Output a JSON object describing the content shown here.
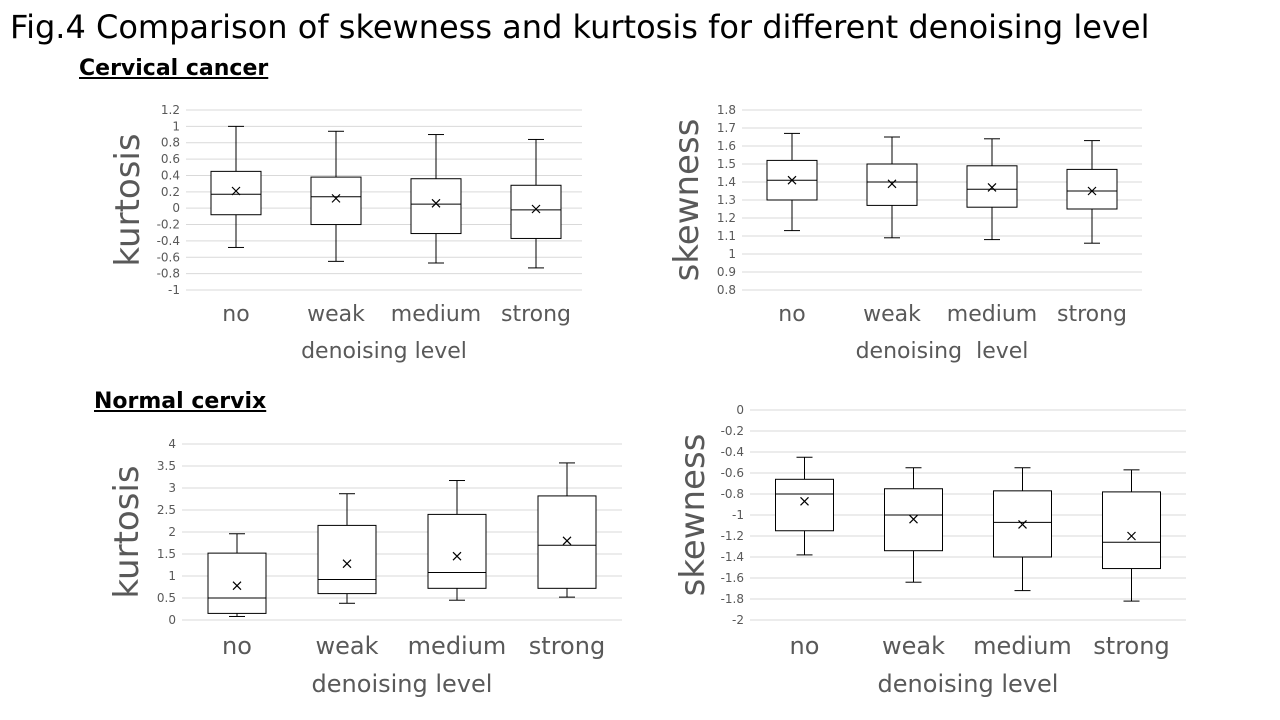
{
  "title": "Fig.4 Comparison of skewness and kurtosis for different denoising level",
  "sections": [
    "Cervical cancer",
    "Normal cervix"
  ],
  "chart_data": [
    {
      "type": "box",
      "section": "Cervical cancer",
      "xlabel": "denoising level",
      "ylabel": "kurtosis",
      "categories": [
        "no",
        "weak",
        "medium",
        "strong"
      ],
      "ylim": [
        -1,
        1.2
      ],
      "ytick_step": 0.2,
      "yticks": [
        "-1",
        "-0.8",
        "-0.6",
        "-0.4",
        "-0.2",
        "0",
        "0.2",
        "0.4",
        "0.6",
        "0.8",
        "1",
        "1.2"
      ],
      "grid": true,
      "boxes": [
        {
          "min": -0.48,
          "q1": -0.08,
          "median": 0.17,
          "q3": 0.45,
          "max": 1.0,
          "mean": 0.21
        },
        {
          "min": -0.65,
          "q1": -0.2,
          "median": 0.14,
          "q3": 0.38,
          "max": 0.94,
          "mean": 0.12
        },
        {
          "min": -0.67,
          "q1": -0.31,
          "median": 0.05,
          "q3": 0.36,
          "max": 0.9,
          "mean": 0.06
        },
        {
          "min": -0.73,
          "q1": -0.37,
          "median": -0.02,
          "q3": 0.28,
          "max": 0.84,
          "mean": -0.01
        }
      ]
    },
    {
      "type": "box",
      "section": "Cervical cancer",
      "xlabel": "denoising  level",
      "ylabel": "skewness",
      "categories": [
        "no",
        "weak",
        "medium",
        "strong"
      ],
      "ylim": [
        0.8,
        1.8
      ],
      "ytick_step": 0.1,
      "yticks": [
        "0.8",
        "0.9",
        "1",
        "1.1",
        "1.2",
        "1.3",
        "1.4",
        "1.5",
        "1.6",
        "1.7",
        "1.8"
      ],
      "grid": true,
      "boxes": [
        {
          "min": 1.13,
          "q1": 1.3,
          "median": 1.41,
          "q3": 1.52,
          "max": 1.67,
          "mean": 1.41
        },
        {
          "min": 1.09,
          "q1": 1.27,
          "median": 1.4,
          "q3": 1.5,
          "max": 1.65,
          "mean": 1.39
        },
        {
          "min": 1.08,
          "q1": 1.26,
          "median": 1.36,
          "q3": 1.49,
          "max": 1.64,
          "mean": 1.37
        },
        {
          "min": 1.06,
          "q1": 1.25,
          "median": 1.35,
          "q3": 1.47,
          "max": 1.63,
          "mean": 1.35
        }
      ]
    },
    {
      "type": "box",
      "section": "Normal cervix",
      "xlabel": "denoising level",
      "ylabel": "kurtosis",
      "categories": [
        "no",
        "weak",
        "medium",
        "strong"
      ],
      "ylim": [
        0,
        4
      ],
      "ytick_step": 0.5,
      "yticks": [
        "0",
        "0.5",
        "1",
        "1.5",
        "2",
        "2.5",
        "3",
        "3.5",
        "4"
      ],
      "grid": true,
      "boxes": [
        {
          "min": 0.08,
          "q1": 0.15,
          "median": 0.5,
          "q3": 1.52,
          "max": 1.96,
          "mean": 0.78
        },
        {
          "min": 0.38,
          "q1": 0.6,
          "median": 0.92,
          "q3": 2.15,
          "max": 2.87,
          "mean": 1.28
        },
        {
          "min": 0.45,
          "q1": 0.72,
          "median": 1.08,
          "q3": 2.4,
          "max": 3.17,
          "mean": 1.45
        },
        {
          "min": 0.52,
          "q1": 0.72,
          "median": 1.7,
          "q3": 2.82,
          "max": 3.57,
          "mean": 1.8
        }
      ]
    },
    {
      "type": "box",
      "section": "Normal cervix",
      "xlabel": "denoising level",
      "ylabel": "skewness",
      "categories": [
        "no",
        "weak",
        "medium",
        "strong"
      ],
      "ylim": [
        -2,
        0
      ],
      "ytick_step": 0.2,
      "yticks": [
        "-2",
        "-1.8",
        "-1.6",
        "-1.4",
        "-1.2",
        "-1",
        "-0.8",
        "-0.6",
        "-0.4",
        "-0.2",
        "0"
      ],
      "grid": true,
      "boxes": [
        {
          "min": -1.38,
          "q1": -1.15,
          "median": -0.8,
          "q3": -0.66,
          "max": -0.45,
          "mean": -0.87
        },
        {
          "min": -1.64,
          "q1": -1.34,
          "median": -1.0,
          "q3": -0.75,
          "max": -0.55,
          "mean": -1.04
        },
        {
          "min": -1.72,
          "q1": -1.4,
          "median": -1.07,
          "q3": -0.77,
          "max": -0.55,
          "mean": -1.09
        },
        {
          "min": -1.82,
          "q1": -1.51,
          "median": -1.26,
          "q3": -0.78,
          "max": -0.57,
          "mean": -1.2
        }
      ]
    }
  ]
}
